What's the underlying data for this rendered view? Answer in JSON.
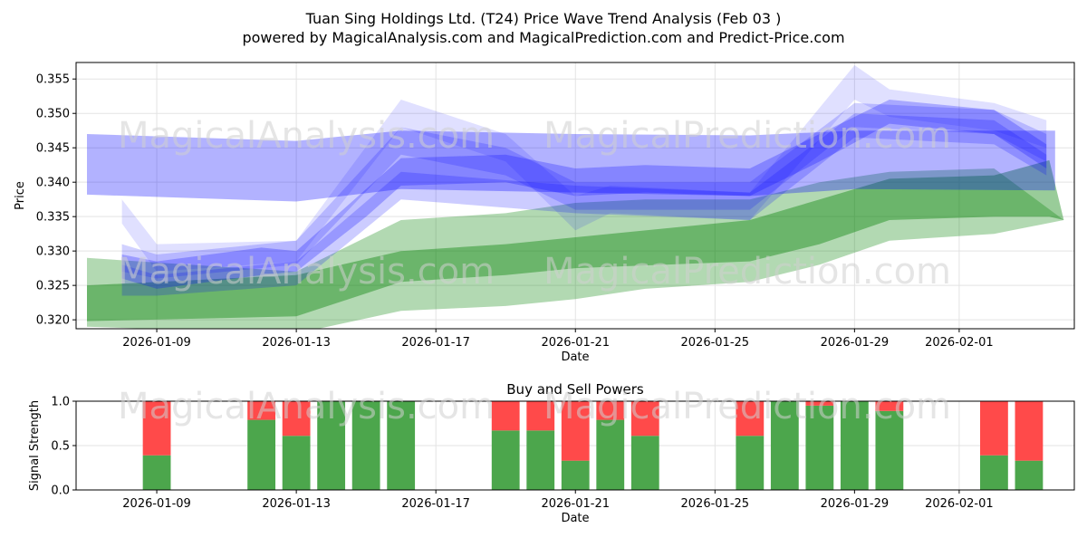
{
  "title_line1": "Tuan Sing Holdings Ltd. (T24) Price Wave Trend Analysis (Feb 03 )",
  "title_line2": "powered by MagicalAnalysis.com and MagicalPrediction.com and Predict-Price.com",
  "watermarks": [
    "MagicalAnalysis.com",
    "MagicalPrediction.com"
  ],
  "colors": {
    "blue": "#0000ff",
    "green": "#008000",
    "buy": "#4ca64c",
    "sell": "#ff4a4a"
  },
  "chart_data": [
    {
      "type": "area",
      "title": "",
      "xlabel": "Date",
      "ylabel": "Price",
      "xlim": [
        "2026-01-06T16:30",
        "2026-02-04T07:12"
      ],
      "ylim": [
        0.3187,
        0.3574
      ],
      "grid": true,
      "xticks": [
        "2026-01-09",
        "2026-01-13",
        "2026-01-17",
        "2026-01-21",
        "2026-01-25",
        "2026-01-29",
        "2026-02-01"
      ],
      "yticks": [
        "0.320",
        "0.325",
        "0.330",
        "0.335",
        "0.340",
        "0.345",
        "0.350",
        "0.355"
      ],
      "bands": [
        {
          "name": "green-outer",
          "color": "green",
          "opacity": 0.3,
          "x": [
            "2026-01-07",
            "2026-01-13",
            "2026-01-16",
            "2026-01-19",
            "2026-01-21",
            "2026-01-23",
            "2026-01-26",
            "2026-01-28",
            "2026-01-30",
            "2026-02-02",
            "2026-02-04"
          ],
          "upper": [
            0.329,
            0.327,
            0.3345,
            0.3355,
            0.337,
            0.3375,
            0.3375,
            0.34,
            0.3415,
            0.342,
            0.3345
          ],
          "lower": [
            0.319,
            0.318,
            0.3213,
            0.322,
            0.323,
            0.3245,
            0.3255,
            0.328,
            0.3315,
            0.3325,
            0.3345
          ]
        },
        {
          "name": "green-inner",
          "color": "green",
          "opacity": 0.4,
          "x": [
            "2026-01-07",
            "2026-01-13",
            "2026-01-16",
            "2026-01-19",
            "2026-01-21",
            "2026-01-26",
            "2026-01-28",
            "2026-01-30",
            "2026-02-02",
            "2026-02-03T14:00",
            "2026-02-04"
          ],
          "upper": [
            0.325,
            0.3265,
            0.33,
            0.331,
            0.332,
            0.3345,
            0.3375,
            0.3405,
            0.341,
            0.3432,
            0.3345
          ],
          "lower": [
            0.3198,
            0.3205,
            0.3255,
            0.3265,
            0.3275,
            0.3285,
            0.331,
            0.3345,
            0.335,
            0.335,
            0.3345
          ]
        },
        {
          "name": "blue-wide",
          "color": "blue",
          "opacity": 0.3,
          "x": [
            "2026-01-07",
            "2026-01-13",
            "2026-01-16",
            "2026-01-21",
            "2026-01-26",
            "2026-01-29",
            "2026-02-03T18:00"
          ],
          "upper": [
            0.347,
            0.346,
            0.3475,
            0.347,
            0.3468,
            0.3475,
            0.3475
          ],
          "lower": [
            0.3382,
            0.3372,
            0.339,
            0.3385,
            0.338,
            0.339,
            0.3388
          ]
        },
        {
          "name": "blue-wave-1",
          "color": "blue",
          "opacity": 0.12,
          "x": [
            "2026-01-08",
            "2026-01-09",
            "2026-01-13",
            "2026-01-16",
            "2026-01-19",
            "2026-01-21",
            "2026-01-22",
            "2026-01-26",
            "2026-01-29",
            "2026-01-30",
            "2026-02-02",
            "2026-02-03T12:00"
          ],
          "upper": [
            0.3375,
            0.331,
            0.3315,
            0.352,
            0.347,
            0.338,
            0.3395,
            0.3385,
            0.357,
            0.3535,
            0.3515,
            0.349
          ],
          "lower": [
            0.334,
            0.327,
            0.3285,
            0.348,
            0.343,
            0.333,
            0.3355,
            0.3345,
            0.352,
            0.3495,
            0.3475,
            0.345
          ]
        },
        {
          "name": "blue-wave-2",
          "color": "blue",
          "opacity": 0.18,
          "x": [
            "2026-01-08",
            "2026-01-09",
            "2026-01-13",
            "2026-01-16",
            "2026-01-19",
            "2026-01-21",
            "2026-01-26",
            "2026-01-29",
            "2026-02-02",
            "2026-02-03T12:00"
          ],
          "upper": [
            0.331,
            0.3295,
            0.3315,
            0.348,
            0.345,
            0.34,
            0.34,
            0.3515,
            0.3505,
            0.347
          ],
          "lower": [
            0.327,
            0.326,
            0.328,
            0.344,
            0.341,
            0.336,
            0.336,
            0.348,
            0.347,
            0.343
          ]
        },
        {
          "name": "blue-wave-3",
          "color": "blue",
          "opacity": 0.25,
          "x": [
            "2026-01-08",
            "2026-01-09",
            "2026-01-12",
            "2026-01-13",
            "2026-01-15",
            "2026-01-16",
            "2026-01-19",
            "2026-01-21",
            "2026-01-23",
            "2026-01-26",
            "2026-01-28",
            "2026-01-30",
            "2026-02-02",
            "2026-02-03T12:00"
          ],
          "upper": [
            0.3295,
            0.3285,
            0.3305,
            0.33,
            0.339,
            0.3435,
            0.344,
            0.342,
            0.3425,
            0.342,
            0.347,
            0.352,
            0.3505,
            0.3455
          ],
          "lower": [
            0.326,
            0.3245,
            0.3265,
            0.327,
            0.335,
            0.3395,
            0.34,
            0.338,
            0.3385,
            0.338,
            0.343,
            0.3485,
            0.347,
            0.342
          ]
        },
        {
          "name": "blue-wave-4",
          "color": "blue",
          "opacity": 0.2,
          "x": [
            "2026-01-08",
            "2026-01-09",
            "2026-01-13",
            "2026-01-16",
            "2026-01-21",
            "2026-01-26",
            "2026-01-29",
            "2026-02-02",
            "2026-02-03T12:00"
          ],
          "upper": [
            0.328,
            0.3265,
            0.3285,
            0.3415,
            0.3395,
            0.3385,
            0.35,
            0.349,
            0.344
          ],
          "lower": [
            0.3235,
            0.3235,
            0.325,
            0.3375,
            0.3355,
            0.3345,
            0.3465,
            0.3455,
            0.341
          ]
        }
      ]
    },
    {
      "type": "bar",
      "title": "Buy and Sell Powers",
      "xlabel": "Date",
      "ylabel": "Signal Strength",
      "xlim": [
        "2026-01-06T16:30",
        "2026-02-04T07:12"
      ],
      "ylim": [
        0,
        1
      ],
      "xticks": [
        "2026-01-09",
        "2026-01-13",
        "2026-01-17",
        "2026-01-21",
        "2026-01-25",
        "2026-01-29",
        "2026-02-01"
      ],
      "yticks": [
        "0.0",
        "0.5",
        "1.0"
      ],
      "categories": [
        "2026-01-09",
        "2026-01-12",
        "2026-01-13",
        "2026-01-14",
        "2026-01-15",
        "2026-01-16",
        "2026-01-19",
        "2026-01-20",
        "2026-01-21",
        "2026-01-22",
        "2026-01-23",
        "2026-01-26",
        "2026-01-27",
        "2026-01-28",
        "2026-01-29",
        "2026-01-30",
        "2026-02-02",
        "2026-02-03"
      ],
      "series": [
        {
          "name": "Buy",
          "color": "buy",
          "values": [
            0.39,
            0.79,
            0.61,
            1.0,
            1.0,
            1.0,
            0.67,
            0.67,
            0.33,
            0.79,
            0.61,
            0.61,
            1.0,
            0.95,
            1.0,
            0.89,
            0.39,
            0.33
          ]
        },
        {
          "name": "Sell",
          "color": "sell",
          "values": [
            0.61,
            0.21,
            0.39,
            0.0,
            0.0,
            0.0,
            0.33,
            0.33,
            0.67,
            0.21,
            0.39,
            0.39,
            0.0,
            0.05,
            0.0,
            0.11,
            0.61,
            0.67
          ]
        }
      ]
    }
  ]
}
